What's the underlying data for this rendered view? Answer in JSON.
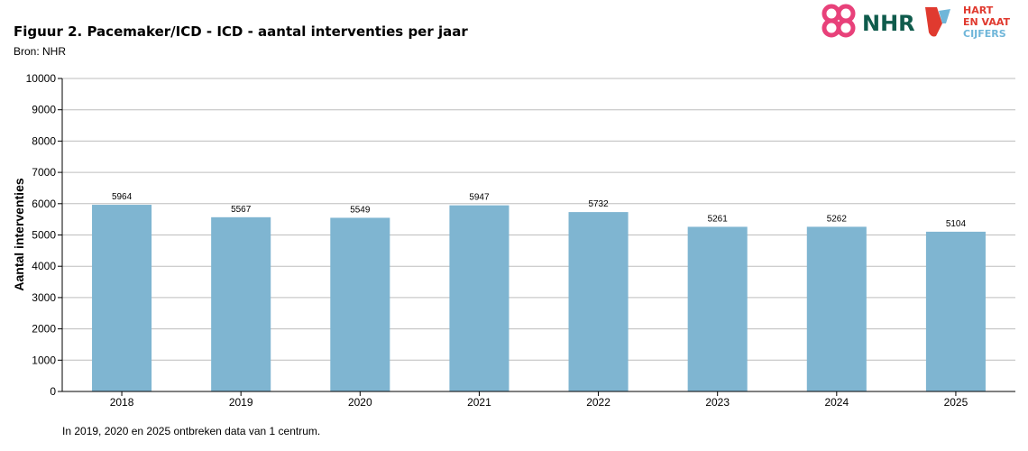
{
  "chart_data": {
    "type": "bar",
    "title": "Figuur 2. Pacemaker/ICD - ICD - aantal interventies per jaar",
    "subtitle": "Bron: NHR",
    "xlabel": "",
    "ylabel": "Aantal interventies",
    "categories": [
      "2018",
      "2019",
      "2020",
      "2021",
      "2022",
      "2023",
      "2024",
      "2025"
    ],
    "values": [
      5964,
      5567,
      5549,
      5947,
      5732,
      5261,
      5262,
      5104
    ],
    "data_labels": [
      "5964",
      "5567",
      "5549",
      "5947",
      "5732",
      "5261",
      "5262",
      "5104"
    ],
    "ylim": [
      0,
      10000
    ],
    "yticks": [
      "0",
      "1000",
      "2000",
      "3000",
      "4000",
      "5000",
      "6000",
      "7000",
      "8000",
      "9000",
      "10000"
    ],
    "grid": true,
    "bar_color": "#7fb5d1",
    "grid_color": "#bdbdbd",
    "footnote": "In 2019, 2020 en 2025 ontbreken data van 1 centrum."
  },
  "logos": {
    "nhr": "NHR",
    "hart_line1": "HART",
    "hart_line2": "EN VAAT",
    "hart_line3": "CIJFERS",
    "nhr_color": "#e8417a",
    "nhr_text_color": "#0f5b4c",
    "hart_red": "#e03a2f",
    "hart_blue": "#6fb6d9"
  }
}
